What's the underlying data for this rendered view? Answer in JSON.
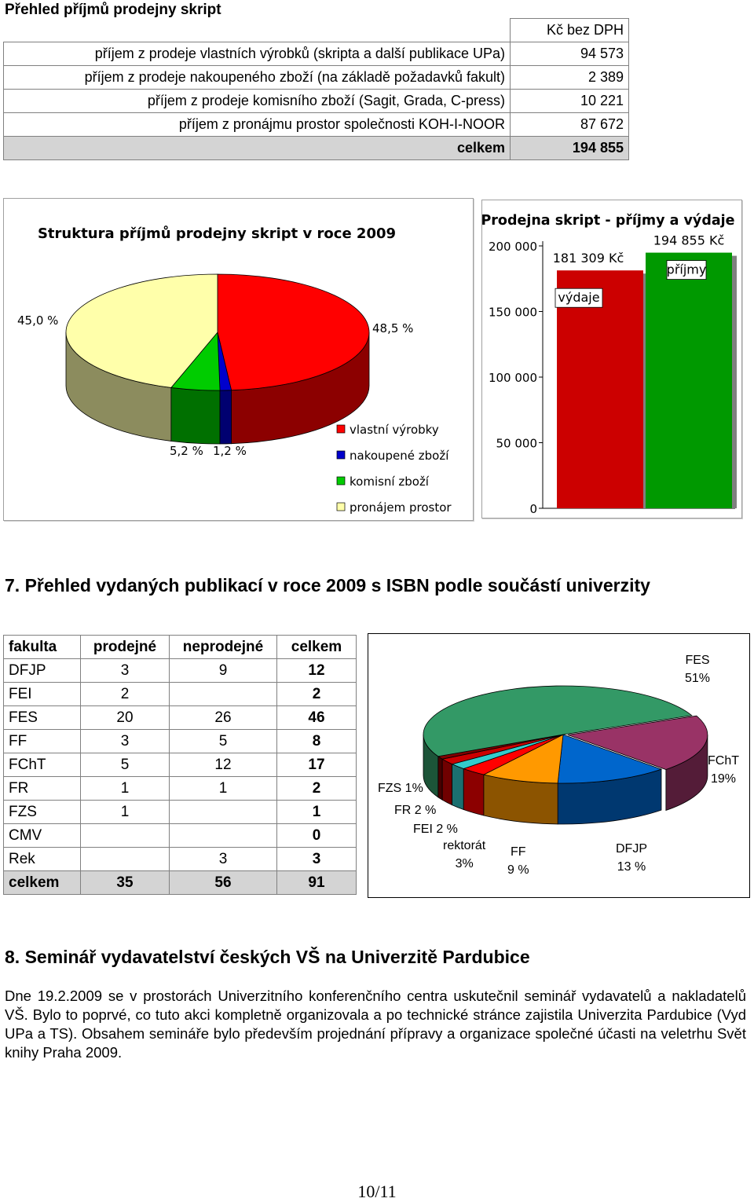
{
  "income": {
    "heading": "Přehled příjmů prodejny skript",
    "currency_header": "Kč bez DPH",
    "rows": [
      {
        "label": "příjem z prodeje vlastních výrobků (skripta a další publikace UPa)",
        "value": "94 573"
      },
      {
        "label": "příjem z prodeje nakoupeného zboží (na základě požadavků fakult)",
        "value": "2 389"
      },
      {
        "label": "příjem z prodeje komisního zboží (Sagit, Grada, C-press)",
        "value": "10 221"
      },
      {
        "label": "příjem z pronájmu prostor společnosti KOH-I-NOOR",
        "value": "87 672"
      }
    ],
    "total_label": "celkem",
    "total_value": "194 855"
  },
  "chart_data": [
    {
      "type": "pie",
      "title": "Struktura příjmů prodejny skript v roce 2009",
      "labels": [
        "vlastní výrobky",
        "nakoupené zboží",
        "komisní zboží",
        "pronájem prostor"
      ],
      "values": [
        48.5,
        1.2,
        5.2,
        45.0
      ],
      "value_labels": [
        "48,5 %",
        "1,2 %",
        "5,2 %",
        "45,0 %"
      ],
      "colors": [
        "#ff0000",
        "#0000cc",
        "#00cc00",
        "#ffffaa"
      ],
      "legend": "bottom-right"
    },
    {
      "type": "bar",
      "title": "Prodejna skript - příjmy a výdaje",
      "categories": [
        "výdaje",
        "příjmy"
      ],
      "values": [
        181309,
        194855
      ],
      "value_labels": [
        "181 309 Kč",
        "194 855 Kč"
      ],
      "colors": [
        "#cc0000",
        "#009900"
      ],
      "ylim": [
        0,
        200000
      ],
      "yticks": [
        "0",
        "50 000",
        "100 000",
        "150 000",
        "200 000"
      ]
    },
    {
      "type": "pie",
      "labels": [
        "FES",
        "FChT",
        "DFJP",
        "FF",
        "rektorát",
        "FEI",
        "FR",
        "FZS"
      ],
      "values": [
        51,
        19,
        13,
        9,
        3,
        2,
        2,
        1
      ],
      "label_texts": [
        "FES\n51%",
        "FChT\n19%",
        "DFJP\n13 %",
        "FF\n9 %",
        "rektorát\n3%",
        "FEI 2 %",
        "FR 2 %",
        "FZS 1%"
      ],
      "colors": [
        "#339966",
        "#993366",
        "#0066cc",
        "#ff9900",
        "#ff0000",
        "#33cccc",
        "#cc0000",
        "#800000"
      ]
    }
  ],
  "section7": {
    "heading": "7. Přehled vydaných publikací v roce 2009 s ISBN podle součástí univerzity",
    "headers": [
      "fakulta",
      "prodejné",
      "neprodejné",
      "celkem"
    ],
    "rows": [
      [
        "DFJP",
        "3",
        "9",
        "12"
      ],
      [
        "FEI",
        "2",
        "",
        "2"
      ],
      [
        "FES",
        "20",
        "26",
        "46"
      ],
      [
        "FF",
        "3",
        "5",
        "8"
      ],
      [
        "FChT",
        "5",
        "12",
        "17"
      ],
      [
        "FR",
        "1",
        "1",
        "2"
      ],
      [
        "FZS",
        "1",
        "",
        "1"
      ],
      [
        "CMV",
        "",
        "",
        "0"
      ],
      [
        "Rek",
        "",
        "3",
        "3"
      ]
    ],
    "total": [
      "celkem",
      "35",
      "56",
      "91"
    ]
  },
  "section8": {
    "heading": "8. Seminář vydavatelství českých VŠ na Univerzitě Pardubice",
    "text": "Dne 19.2.2009 se v prostorách Univerzitního konferenčního centra uskutečnil seminář vydavatelů a nakladatelů VŠ. Bylo to poprvé, co tuto akci kompletně organizovala a po technické stránce zajistila Univerzita Pardubice (Vyd UPa a TS). Obsahem semináře bylo především projednání přípravy a organizace společné účasti na veletrhu Svět knihy Praha 2009."
  },
  "page_number": "10/11"
}
